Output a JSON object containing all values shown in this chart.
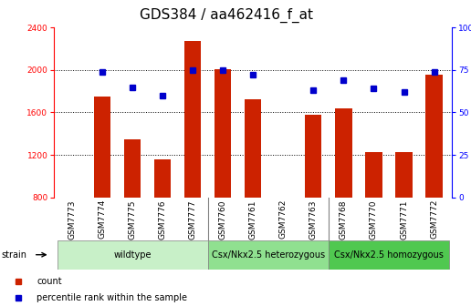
{
  "title": "GDS384 / aa462416_f_at",
  "samples": [
    "GSM7773",
    "GSM7774",
    "GSM7775",
    "GSM7776",
    "GSM7777",
    "GSM7760",
    "GSM7761",
    "GSM7762",
    "GSM7763",
    "GSM7768",
    "GSM7770",
    "GSM7771",
    "GSM7772"
  ],
  "counts": [
    800,
    1750,
    1350,
    1160,
    2270,
    2010,
    1720,
    800,
    1580,
    1640,
    1230,
    1230,
    1960
  ],
  "percentiles": [
    null,
    74,
    65,
    60,
    75,
    75,
    72,
    null,
    63,
    69,
    64,
    62,
    74
  ],
  "groups": [
    {
      "label": "wildtype",
      "start": 0,
      "end": 4,
      "color": "#c8f0c8"
    },
    {
      "label": "Csx/Nkx2.5 heterozygous",
      "start": 5,
      "end": 8,
      "color": "#90e090"
    },
    {
      "label": "Csx/Nkx2.5 homozygous",
      "start": 9,
      "end": 12,
      "color": "#50c850"
    }
  ],
  "bar_color": "#cc2200",
  "dot_color": "#0000cc",
  "ylim_left": [
    800,
    2400
  ],
  "ylim_right": [
    0,
    100
  ],
  "yticks_left": [
    800,
    1200,
    1600,
    2000,
    2400
  ],
  "yticks_right": [
    0,
    25,
    50,
    75,
    100
  ],
  "grid_levels": [
    1200,
    1600,
    2000
  ],
  "background_color": "#ffffff",
  "title_fontsize": 11,
  "tick_fontsize": 6.5,
  "group_fontsize": 7
}
